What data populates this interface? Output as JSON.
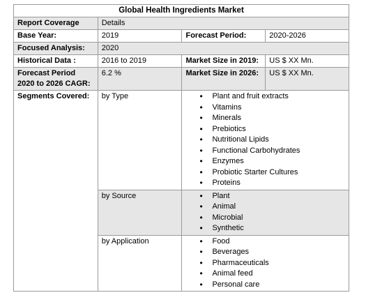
{
  "title": "Global Health Ingredients Market",
  "header": {
    "col1": "Report Coverage",
    "col2": "Details"
  },
  "base_year": {
    "label": "Base Year:",
    "value": "2019",
    "label2": "Forecast Period:",
    "value2": "2020-2026"
  },
  "focused": {
    "label": "Focused Analysis:",
    "value": "2020"
  },
  "historical": {
    "label": "Historical Data :",
    "value": "2016 to 2019",
    "label2": "Market Size in 2019:",
    "value2": "US $ XX Mn."
  },
  "cagr": {
    "label": "Forecast Period 2020 to 2026 CAGR:",
    "value": "6.2 %",
    "label2": "Market Size in 2026:",
    "value2": "US $ XX Mn."
  },
  "segments": {
    "label": "Segments Covered:",
    "type": {
      "label": "by Type",
      "items": [
        "Plant and fruit extracts",
        "Vitamins",
        "Minerals",
        "Prebiotics",
        "Nutritional Lipids",
        "Functional Carbohydrates",
        "Enzymes",
        "Probiotic Starter Cultures",
        "Proteins"
      ]
    },
    "source": {
      "label": "by Source",
      "items": [
        "Plant",
        "Animal",
        "Microbial",
        "Synthetic"
      ]
    },
    "application": {
      "label": "by Application",
      "items": [
        "Food",
        "Beverages",
        "Pharmaceuticals",
        "Animal feed",
        "Personal care"
      ]
    }
  }
}
